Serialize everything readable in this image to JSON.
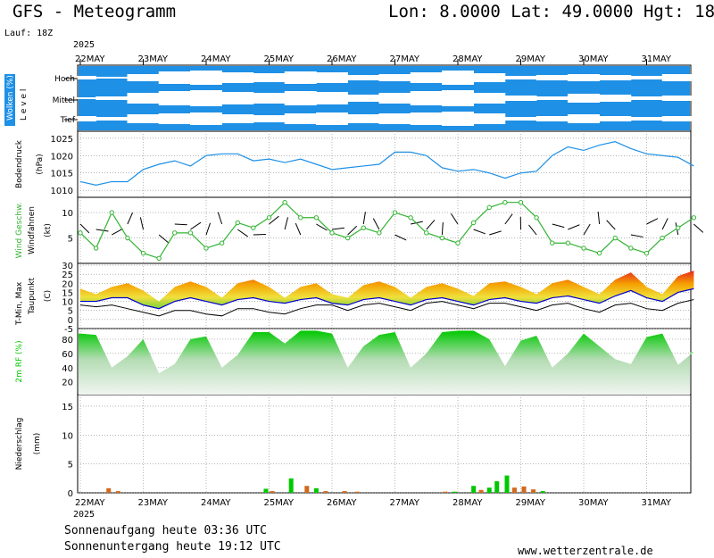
{
  "header": {
    "title": "GFS - Meteogramm",
    "coords": "Lon: 8.0000 Lat: 49.0000 Hgt: 18",
    "run": "Lauf: 18Z",
    "year_top": "2025",
    "year_bottom": "2025"
  },
  "dates": [
    "22MAY",
    "23MAY",
    "24MAY",
    "25MAY",
    "26MAY",
    "27MAY",
    "28MAY",
    "29MAY",
    "30MAY",
    "31MAY"
  ],
  "footer": {
    "sunrise": "Sonnenaufgang heute 03:36 UTC",
    "sunset": "Sonnenuntergang heute 19:12 UTC",
    "website": "www.wetterzentrale.de"
  },
  "colors": {
    "cloud_sky": "#1e90e6",
    "pressure_line": "#1e90e6",
    "wind_line": "#32b432",
    "temp_min_line": "#0000cc",
    "dewpoint_line": "#000000",
    "humidity_fill": "#00c800",
    "precip_rain": "#00c800",
    "precip_other": "#d2691e"
  },
  "chart_data": [
    {
      "type": "heatmap",
      "panel": "clouds",
      "ylabel": "Wolken (%)",
      "ylabel2": "L e v e l",
      "levels": [
        "Hoch",
        "Mittel",
        "Tief"
      ],
      "x_days": [
        0,
        0.5,
        1,
        1.5,
        2,
        2.5,
        3,
        3.5,
        4,
        4.5,
        5,
        5.5,
        6,
        6.5,
        7,
        7.5,
        8,
        8.5,
        9,
        9.5
      ],
      "cover_hoch": [
        20,
        10,
        40,
        70,
        80,
        60,
        50,
        70,
        60,
        30,
        40,
        60,
        80,
        50,
        20,
        30,
        40,
        30,
        20,
        40
      ],
      "cover_mittel": [
        10,
        20,
        60,
        80,
        90,
        70,
        60,
        80,
        70,
        40,
        60,
        80,
        90,
        60,
        30,
        20,
        50,
        40,
        20,
        30
      ],
      "cover_tief": [
        30,
        20,
        50,
        60,
        70,
        50,
        40,
        60,
        70,
        50,
        60,
        70,
        80,
        60,
        20,
        30,
        50,
        30,
        20,
        30
      ]
    },
    {
      "type": "line",
      "panel": "pressure",
      "ylabel": "Bodendruck",
      "unit": "(hPa)",
      "ylim": [
        1008,
        1027
      ],
      "yticks": [
        1010,
        1015,
        1020,
        1025
      ],
      "x_days": [
        0,
        0.25,
        0.5,
        0.75,
        1,
        1.25,
        1.5,
        1.75,
        2,
        2.25,
        2.5,
        2.75,
        3,
        3.25,
        3.5,
        3.75,
        4,
        4.25,
        4.5,
        4.75,
        5,
        5.25,
        5.5,
        5.75,
        6,
        6.25,
        6.5,
        6.75,
        7,
        7.25,
        7.5,
        7.75,
        8,
        8.25,
        8.5,
        8.75,
        9,
        9.25,
        9.5,
        9.75
      ],
      "values": [
        1012.5,
        1011.5,
        1012.5,
        1012.5,
        1016.0,
        1017.5,
        1018.5,
        1017.0,
        1020.0,
        1020.5,
        1020.5,
        1018.5,
        1019.0,
        1018.0,
        1019.0,
        1017.5,
        1016.0,
        1016.5,
        1017.0,
        1017.5,
        1021.0,
        1021.0,
        1020.0,
        1016.5,
        1015.5,
        1016.0,
        1015.0,
        1013.5,
        1015.0,
        1015.5,
        1020.0,
        1022.5,
        1021.5,
        1023.0,
        1024.0,
        1022.0,
        1020.5,
        1020.0,
        1019.5,
        1017.0
      ]
    },
    {
      "type": "line",
      "panel": "wind",
      "ylabel": "Wind Geschw.",
      "ylabel2": "Windfahnen",
      "unit": "(kt)",
      "ylim": [
        0,
        13
      ],
      "yticks": [
        5,
        10
      ],
      "x_days": [
        0,
        0.25,
        0.5,
        0.75,
        1,
        1.25,
        1.5,
        1.75,
        2,
        2.25,
        2.5,
        2.75,
        3,
        3.25,
        3.5,
        3.75,
        4,
        4.25,
        4.5,
        4.75,
        5,
        5.25,
        5.5,
        5.75,
        6,
        6.25,
        6.5,
        6.75,
        7,
        7.25,
        7.5,
        7.75,
        8,
        8.25,
        8.5,
        8.75,
        9,
        9.25,
        9.5,
        9.75
      ],
      "values": [
        6,
        3,
        10,
        5,
        2,
        1,
        6,
        6,
        3,
        4,
        8,
        7,
        9,
        12,
        9,
        9,
        6,
        5,
        7,
        6,
        10,
        9,
        6,
        5,
        4,
        8,
        11,
        12,
        12,
        9,
        4,
        4,
        3,
        2,
        5,
        3,
        2,
        5,
        7,
        9
      ]
    },
    {
      "type": "area",
      "panel": "temperature",
      "ylabel": "T-Min, Max",
      "ylabel2": "Taupunkt",
      "unit": "(C)",
      "ylim": [
        -5,
        31
      ],
      "yticks": [
        -5,
        0,
        5,
        10,
        15,
        20,
        25,
        30
      ],
      "x_days": [
        0,
        0.25,
        0.5,
        0.75,
        1,
        1.25,
        1.5,
        1.75,
        2,
        2.25,
        2.5,
        2.75,
        3,
        3.25,
        3.5,
        3.75,
        4,
        4.25,
        4.5,
        4.75,
        5,
        5.25,
        5.5,
        5.75,
        6,
        6.25,
        6.5,
        6.75,
        7,
        7.25,
        7.5,
        7.75,
        8,
        8.25,
        8.5,
        8.75,
        9,
        9.25,
        9.5,
        9.75
      ],
      "tmax": [
        17,
        14,
        18,
        20,
        16,
        10,
        18,
        21,
        18,
        12,
        20,
        22,
        18,
        12,
        18,
        20,
        14,
        12,
        19,
        21,
        18,
        12,
        18,
        20,
        17,
        13,
        20,
        21,
        18,
        14,
        20,
        22,
        18,
        14,
        22,
        26,
        18,
        14,
        24,
        27
      ],
      "tmin": [
        10,
        10,
        12,
        12,
        8,
        6,
        10,
        12,
        10,
        8,
        11,
        12,
        10,
        9,
        11,
        12,
        9,
        8,
        11,
        12,
        10,
        8,
        11,
        12,
        10,
        8,
        11,
        12,
        10,
        9,
        12,
        13,
        11,
        9,
        13,
        16,
        12,
        10,
        15,
        17
      ],
      "dewpoint": [
        8,
        7,
        8,
        6,
        4,
        2,
        5,
        5,
        3,
        2,
        6,
        6,
        4,
        3,
        6,
        8,
        8,
        5,
        8,
        9,
        7,
        5,
        9,
        10,
        8,
        6,
        9,
        9,
        7,
        5,
        8,
        9,
        6,
        4,
        8,
        9,
        6,
        5,
        9,
        11
      ]
    },
    {
      "type": "area",
      "panel": "humidity",
      "ylabel": "2m RF (%)",
      "ylim": [
        2,
        95
      ],
      "yticks": [
        20,
        40,
        60,
        80
      ],
      "x_days": [
        0,
        0.25,
        0.5,
        0.75,
        1,
        1.25,
        1.5,
        1.75,
        2,
        2.25,
        2.5,
        2.75,
        3,
        3.25,
        3.5,
        3.75,
        4,
        4.25,
        4.5,
        4.75,
        5,
        5.25,
        5.5,
        5.75,
        6,
        6.25,
        6.5,
        6.75,
        7,
        7.25,
        7.5,
        7.75,
        8,
        8.25,
        8.5,
        8.75,
        9,
        9.25,
        9.5,
        9.75
      ],
      "values": [
        88,
        86,
        40,
        56,
        80,
        32,
        45,
        80,
        84,
        40,
        58,
        90,
        90,
        74,
        92,
        92,
        88,
        40,
        70,
        86,
        90,
        40,
        60,
        90,
        92,
        92,
        80,
        42,
        78,
        85,
        40,
        60,
        88,
        70,
        52,
        45,
        83,
        88,
        44,
        62
      ]
    },
    {
      "type": "bar",
      "panel": "precipitation",
      "ylabel": "Niederschlag",
      "unit": "(mm)",
      "ylim": [
        0,
        17
      ],
      "yticks": [
        0,
        5,
        10,
        15
      ],
      "bars": [
        {
          "x": 0.45,
          "v": 0.8,
          "kind": "other"
        },
        {
          "x": 0.6,
          "v": 0.3,
          "kind": "other"
        },
        {
          "x": 2.95,
          "v": 0.7,
          "kind": "rain"
        },
        {
          "x": 3.05,
          "v": 0.3,
          "kind": "other"
        },
        {
          "x": 3.35,
          "v": 2.5,
          "kind": "rain"
        },
        {
          "x": 3.6,
          "v": 1.2,
          "kind": "other"
        },
        {
          "x": 3.75,
          "v": 0.8,
          "kind": "rain"
        },
        {
          "x": 3.9,
          "v": 0.3,
          "kind": "other"
        },
        {
          "x": 4.2,
          "v": 0.3,
          "kind": "other"
        },
        {
          "x": 4.4,
          "v": 0.2,
          "kind": "other"
        },
        {
          "x": 5.8,
          "v": 0.2,
          "kind": "other"
        },
        {
          "x": 5.95,
          "v": 0.2,
          "kind": "rain"
        },
        {
          "x": 6.25,
          "v": 1.2,
          "kind": "rain"
        },
        {
          "x": 6.37,
          "v": 0.5,
          "kind": "other"
        },
        {
          "x": 6.5,
          "v": 0.9,
          "kind": "rain"
        },
        {
          "x": 6.62,
          "v": 2.0,
          "kind": "rain"
        },
        {
          "x": 6.78,
          "v": 3.0,
          "kind": "rain"
        },
        {
          "x": 6.9,
          "v": 0.9,
          "kind": "other"
        },
        {
          "x": 7.05,
          "v": 1.1,
          "kind": "other"
        },
        {
          "x": 7.2,
          "v": 0.6,
          "kind": "other"
        },
        {
          "x": 7.35,
          "v": 0.3,
          "kind": "rain"
        }
      ]
    }
  ]
}
